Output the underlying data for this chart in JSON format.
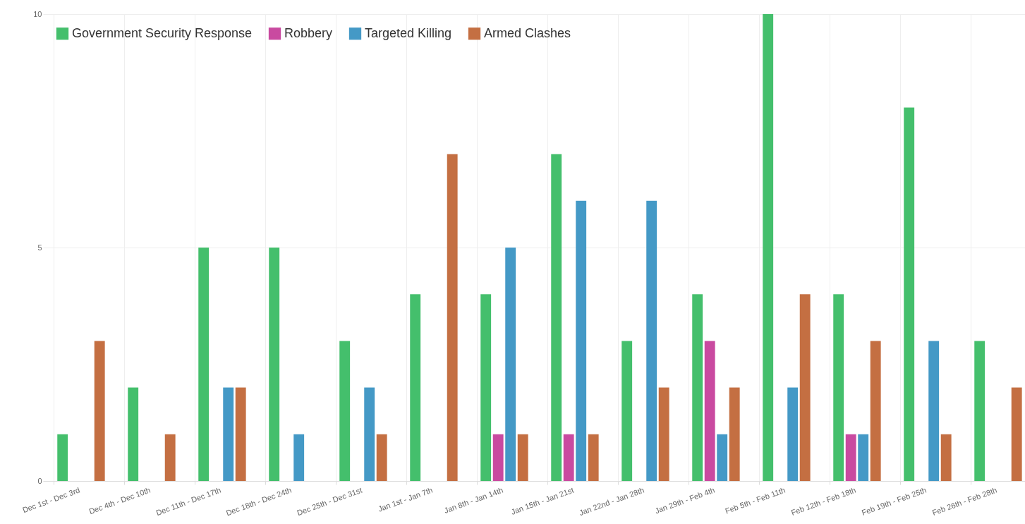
{
  "chart_data": {
    "type": "bar",
    "categories": [
      "Dec 1st - Dec 3rd",
      "Dec 4th - Dec 10th",
      "Dec 11th - Dec 17th",
      "Dec 18th - Dec 24th",
      "Dec 25th - Dec 31st",
      "Jan 1st - Jan 7th",
      "Jan 8th - Jan 14th",
      "Jan 15th - Jan 21st",
      "Jan 22nd - Jan 28th",
      "Jan 29th - Feb 4th",
      "Feb 5th - Feb 11th",
      "Feb 12th - Feb 18th",
      "Feb 19th - Feb 25th",
      "Feb 26th - Feb 28th"
    ],
    "series": [
      {
        "name": "Government Security Response",
        "color": "#44bf6c",
        "values": [
          1,
          2,
          5,
          5,
          3,
          4,
          4,
          7,
          3,
          4,
          10,
          4,
          8,
          3
        ]
      },
      {
        "name": "Robbery",
        "color": "#c94aa0",
        "values": [
          0,
          0,
          0,
          0,
          0,
          0,
          1,
          1,
          0,
          3,
          0,
          1,
          0,
          0
        ]
      },
      {
        "name": "Targeted Killing",
        "color": "#4499c6",
        "values": [
          0,
          0,
          2,
          1,
          2,
          0,
          5,
          6,
          6,
          1,
          2,
          1,
          3,
          0
        ]
      },
      {
        "name": "Armed Clashes",
        "color": "#c46f42",
        "values": [
          3,
          1,
          2,
          0,
          1,
          7,
          1,
          1,
          2,
          2,
          4,
          3,
          1,
          2
        ]
      }
    ],
    "ylim": [
      0,
      10
    ],
    "yticks": [
      0,
      5,
      10
    ],
    "grid": true,
    "legend": "top left"
  }
}
